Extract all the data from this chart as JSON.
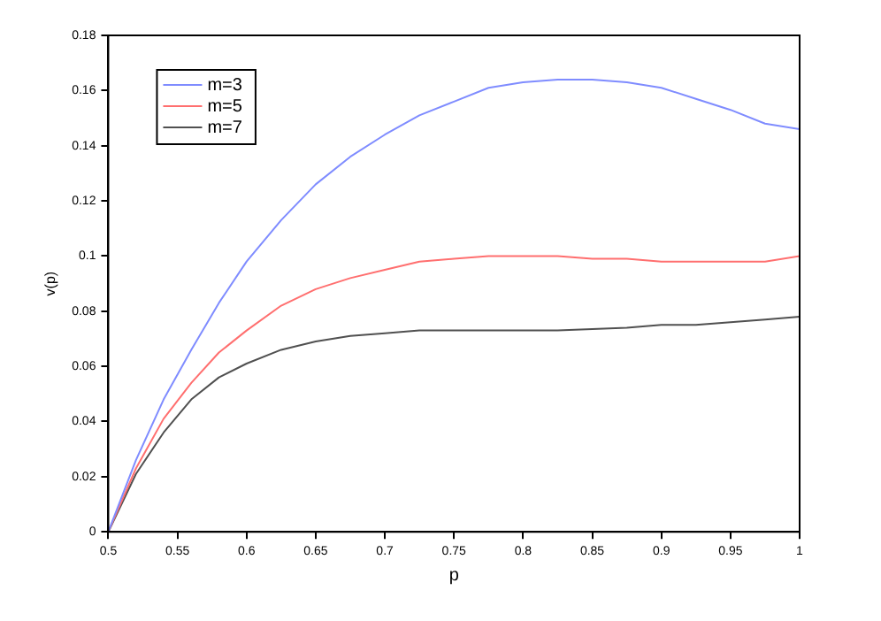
{
  "chart_data": {
    "type": "line",
    "xlabel": "p",
    "ylabel": "v(p)",
    "x": [
      0.5,
      0.52,
      0.54,
      0.56,
      0.58,
      0.6,
      0.625,
      0.65,
      0.675,
      0.7,
      0.725,
      0.75,
      0.775,
      0.8,
      0.825,
      0.85,
      0.875,
      0.9,
      0.925,
      0.95,
      0.975,
      1
    ],
    "series": [
      {
        "name": "m=3",
        "color": "#7f8cff",
        "values": [
          0,
          0.026,
          0.048,
          0.066,
          0.083,
          0.098,
          0.113,
          0.126,
          0.136,
          0.144,
          0.151,
          0.156,
          0.161,
          0.163,
          0.164,
          0.164,
          0.163,
          0.161,
          0.157,
          0.153,
          0.148,
          0.146
        ]
      },
      {
        "name": "m=5",
        "color": "#ff6f6f",
        "values": [
          0,
          0.023,
          0.041,
          0.054,
          0.065,
          0.073,
          0.082,
          0.088,
          0.092,
          0.095,
          0.098,
          0.099,
          0.1,
          0.1,
          0.1,
          0.099,
          0.099,
          0.098,
          0.098,
          0.098,
          0.098,
          0.1
        ]
      },
      {
        "name": "m=7",
        "color": "#505050",
        "values": [
          0,
          0.021,
          0.036,
          0.048,
          0.056,
          0.061,
          0.066,
          0.069,
          0.071,
          0.072,
          0.073,
          0.073,
          0.073,
          0.073,
          0.073,
          0.0735,
          0.074,
          0.075,
          0.075,
          0.076,
          0.077,
          0.078
        ]
      }
    ],
    "xlim": [
      0.5,
      1
    ],
    "xticks": [
      0.5,
      0.55,
      0.6,
      0.65,
      0.7,
      0.75,
      0.8,
      0.85,
      0.9,
      0.95,
      1
    ],
    "ylim": [
      0,
      0.18
    ],
    "yticks": [
      0,
      0.02,
      0.04,
      0.06,
      0.08,
      0.1,
      0.12,
      0.14,
      0.16,
      0.18
    ],
    "grid": false,
    "legend": "top left",
    "marker": "none",
    "line_style": "solid"
  }
}
